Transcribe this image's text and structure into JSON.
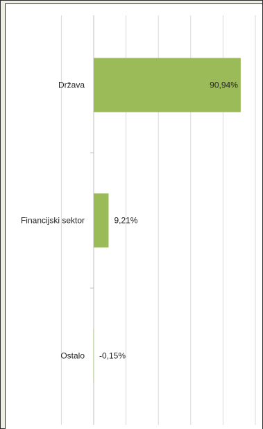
{
  "chart_data": {
    "type": "bar",
    "orientation": "horizontal",
    "categories": [
      "Država",
      "Financijski sektor",
      "Ostalo"
    ],
    "values": [
      90.94,
      9.21,
      -0.15
    ],
    "data_labels": [
      "90,94%",
      "9,21%",
      "-0,15%"
    ],
    "title": "",
    "xlabel": "",
    "ylabel": "",
    "xlim": [
      -0.5,
      100
    ],
    "grid": true,
    "legend": "none",
    "colors": {
      "bar": "#9bbb59",
      "grid": "#d9d9d9",
      "axis": "#bfbfbf",
      "frame_bg": "#eef0e6",
      "border": "#2b2b2b"
    }
  }
}
